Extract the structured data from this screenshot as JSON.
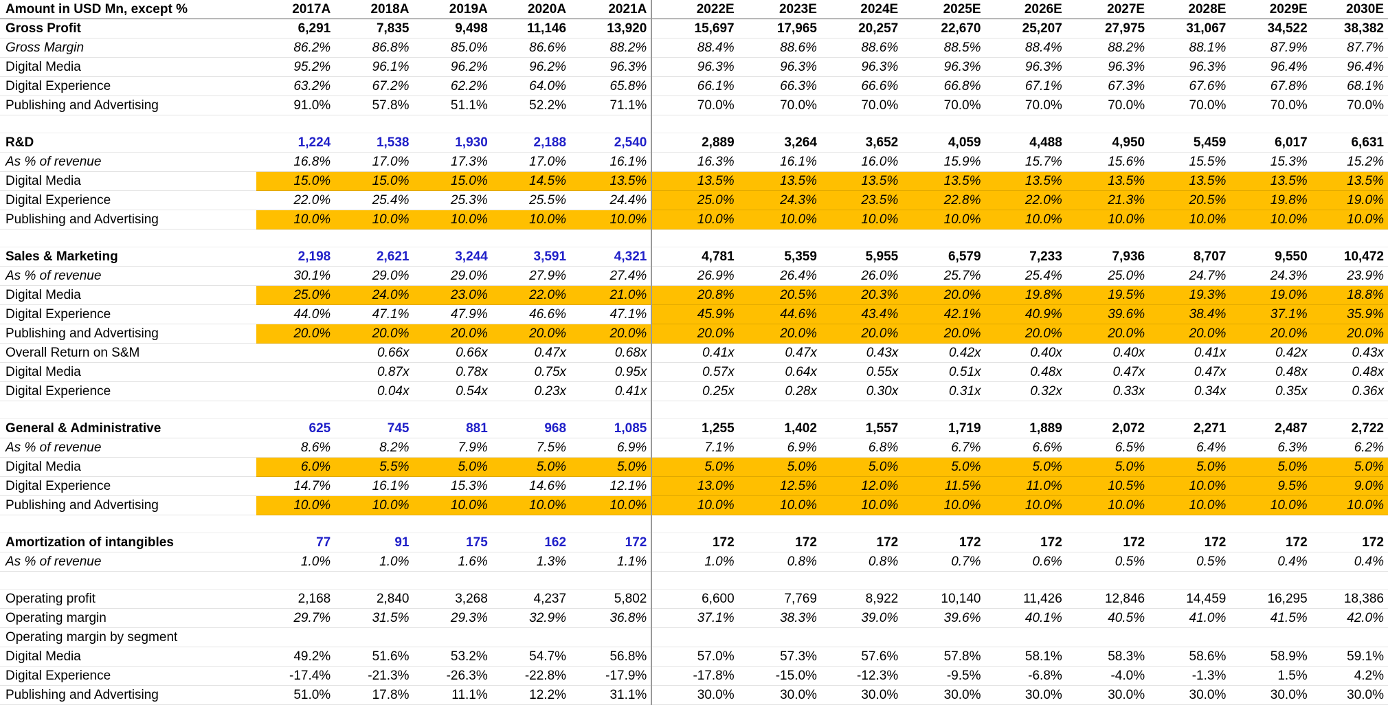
{
  "colors": {
    "highlight": "#ffbf00",
    "historical_bold_text": "#1f1fc8"
  },
  "header": {
    "title": "Amount in USD Mn, except %",
    "years": [
      "2017A",
      "2018A",
      "2019A",
      "2020A",
      "2021A",
      "2022E",
      "2023E",
      "2024E",
      "2025E",
      "2026E",
      "2027E",
      "2028E",
      "2029E",
      "2030E"
    ]
  },
  "rows": [
    {
      "label": "Gross Profit",
      "style": "bold-black",
      "values": [
        "6,291",
        "7,835",
        "9,498",
        "11,146",
        "13,920",
        "15,697",
        "17,965",
        "20,257",
        "22,670",
        "25,207",
        "27,975",
        "31,067",
        "34,522",
        "38,382"
      ]
    },
    {
      "label": "Gross Margin",
      "style": "italic",
      "values": [
        "86.2%",
        "86.8%",
        "85.0%",
        "86.6%",
        "88.2%",
        "88.4%",
        "88.6%",
        "88.6%",
        "88.5%",
        "88.4%",
        "88.2%",
        "88.1%",
        "87.9%",
        "87.7%"
      ]
    },
    {
      "label": "Digital Media",
      "style": "italic-values",
      "values": [
        "95.2%",
        "96.1%",
        "96.2%",
        "96.2%",
        "96.3%",
        "96.3%",
        "96.3%",
        "96.3%",
        "96.3%",
        "96.3%",
        "96.3%",
        "96.3%",
        "96.4%",
        "96.4%"
      ]
    },
    {
      "label": "Digital Experience",
      "style": "italic-values",
      "values": [
        "63.2%",
        "67.2%",
        "62.2%",
        "64.0%",
        "65.8%",
        "66.1%",
        "66.3%",
        "66.6%",
        "66.8%",
        "67.1%",
        "67.3%",
        "67.6%",
        "67.8%",
        "68.1%"
      ]
    },
    {
      "label": "Publishing and Advertising",
      "style": "plain",
      "values": [
        "91.0%",
        "57.8%",
        "51.1%",
        "52.2%",
        "71.1%",
        "70.0%",
        "70.0%",
        "70.0%",
        "70.0%",
        "70.0%",
        "70.0%",
        "70.0%",
        "70.0%",
        "70.0%"
      ]
    },
    {
      "label": "",
      "style": "spacer",
      "values": []
    },
    {
      "label": "R&D",
      "style": "bold",
      "values": [
        "1,224",
        "1,538",
        "1,930",
        "2,188",
        "2,540",
        "2,889",
        "3,264",
        "3,652",
        "4,059",
        "4,488",
        "4,950",
        "5,459",
        "6,017",
        "6,631"
      ]
    },
    {
      "label": "As % of revenue",
      "style": "italic",
      "values": [
        "16.8%",
        "17.0%",
        "17.3%",
        "17.0%",
        "16.1%",
        "16.3%",
        "16.1%",
        "16.0%",
        "15.9%",
        "15.7%",
        "15.6%",
        "15.5%",
        "15.3%",
        "15.2%"
      ]
    },
    {
      "label": "Digital Media",
      "style": "italic-values",
      "hl": "all",
      "values": [
        "15.0%",
        "15.0%",
        "15.0%",
        "14.5%",
        "13.5%",
        "13.5%",
        "13.5%",
        "13.5%",
        "13.5%",
        "13.5%",
        "13.5%",
        "13.5%",
        "13.5%",
        "13.5%"
      ]
    },
    {
      "label": "Digital Experience",
      "style": "italic-values",
      "hl": "forecast",
      "values": [
        "22.0%",
        "25.4%",
        "25.3%",
        "25.5%",
        "24.4%",
        "25.0%",
        "24.3%",
        "23.5%",
        "22.8%",
        "22.0%",
        "21.3%",
        "20.5%",
        "19.8%",
        "19.0%"
      ]
    },
    {
      "label": "Publishing and Advertising",
      "style": "italic-values",
      "hl": "all",
      "values": [
        "10.0%",
        "10.0%",
        "10.0%",
        "10.0%",
        "10.0%",
        "10.0%",
        "10.0%",
        "10.0%",
        "10.0%",
        "10.0%",
        "10.0%",
        "10.0%",
        "10.0%",
        "10.0%"
      ]
    },
    {
      "label": "",
      "style": "spacer",
      "values": []
    },
    {
      "label": "Sales & Marketing",
      "style": "bold",
      "values": [
        "2,198",
        "2,621",
        "3,244",
        "3,591",
        "4,321",
        "4,781",
        "5,359",
        "5,955",
        "6,579",
        "7,233",
        "7,936",
        "8,707",
        "9,550",
        "10,472"
      ]
    },
    {
      "label": "As % of revenue",
      "style": "italic",
      "values": [
        "30.1%",
        "29.0%",
        "29.0%",
        "27.9%",
        "27.4%",
        "26.9%",
        "26.4%",
        "26.0%",
        "25.7%",
        "25.4%",
        "25.0%",
        "24.7%",
        "24.3%",
        "23.9%"
      ]
    },
    {
      "label": "Digital Media",
      "style": "italic-values",
      "hl": "all",
      "values": [
        "25.0%",
        "24.0%",
        "23.0%",
        "22.0%",
        "21.0%",
        "20.8%",
        "20.5%",
        "20.3%",
        "20.0%",
        "19.8%",
        "19.5%",
        "19.3%",
        "19.0%",
        "18.8%"
      ]
    },
    {
      "label": "Digital Experience",
      "style": "italic-values",
      "hl": "forecast",
      "values": [
        "44.0%",
        "47.1%",
        "47.9%",
        "46.6%",
        "47.1%",
        "45.9%",
        "44.6%",
        "43.4%",
        "42.1%",
        "40.9%",
        "39.6%",
        "38.4%",
        "37.1%",
        "35.9%"
      ]
    },
    {
      "label": "Publishing and Advertising",
      "style": "italic-values",
      "hl": "all",
      "values": [
        "20.0%",
        "20.0%",
        "20.0%",
        "20.0%",
        "20.0%",
        "20.0%",
        "20.0%",
        "20.0%",
        "20.0%",
        "20.0%",
        "20.0%",
        "20.0%",
        "20.0%",
        "20.0%"
      ]
    },
    {
      "label": "Overall Return on S&M",
      "style": "italic-values",
      "values": [
        "",
        "0.66x",
        "0.66x",
        "0.47x",
        "0.68x",
        "0.41x",
        "0.47x",
        "0.43x",
        "0.42x",
        "0.40x",
        "0.40x",
        "0.41x",
        "0.42x",
        "0.43x"
      ]
    },
    {
      "label": "Digital Media",
      "style": "italic-values",
      "values": [
        "",
        "0.87x",
        "0.78x",
        "0.75x",
        "0.95x",
        "0.57x",
        "0.64x",
        "0.55x",
        "0.51x",
        "0.48x",
        "0.47x",
        "0.47x",
        "0.48x",
        "0.48x"
      ]
    },
    {
      "label": "Digital Experience",
      "style": "italic-values",
      "values": [
        "",
        "0.04x",
        "0.54x",
        "0.23x",
        "0.41x",
        "0.25x",
        "0.28x",
        "0.30x",
        "0.31x",
        "0.32x",
        "0.33x",
        "0.34x",
        "0.35x",
        "0.36x"
      ]
    },
    {
      "label": "",
      "style": "spacer",
      "values": []
    },
    {
      "label": "General & Administrative",
      "style": "bold",
      "values": [
        "625",
        "745",
        "881",
        "968",
        "1,085",
        "1,255",
        "1,402",
        "1,557",
        "1,719",
        "1,889",
        "2,072",
        "2,271",
        "2,487",
        "2,722"
      ]
    },
    {
      "label": "As % of revenue",
      "style": "italic",
      "values": [
        "8.6%",
        "8.2%",
        "7.9%",
        "7.5%",
        "6.9%",
        "7.1%",
        "6.9%",
        "6.8%",
        "6.7%",
        "6.6%",
        "6.5%",
        "6.4%",
        "6.3%",
        "6.2%"
      ]
    },
    {
      "label": "Digital Media",
      "style": "italic-values",
      "hl": "all",
      "values": [
        "6.0%",
        "5.5%",
        "5.0%",
        "5.0%",
        "5.0%",
        "5.0%",
        "5.0%",
        "5.0%",
        "5.0%",
        "5.0%",
        "5.0%",
        "5.0%",
        "5.0%",
        "5.0%"
      ]
    },
    {
      "label": "Digital Experience",
      "style": "italic-values",
      "hl": "forecast",
      "values": [
        "14.7%",
        "16.1%",
        "15.3%",
        "14.6%",
        "12.1%",
        "13.0%",
        "12.5%",
        "12.0%",
        "11.5%",
        "11.0%",
        "10.5%",
        "10.0%",
        "9.5%",
        "9.0%"
      ]
    },
    {
      "label": "Publishing and Advertising",
      "style": "italic-values",
      "hl": "all",
      "values": [
        "10.0%",
        "10.0%",
        "10.0%",
        "10.0%",
        "10.0%",
        "10.0%",
        "10.0%",
        "10.0%",
        "10.0%",
        "10.0%",
        "10.0%",
        "10.0%",
        "10.0%",
        "10.0%"
      ]
    },
    {
      "label": "",
      "style": "spacer",
      "values": []
    },
    {
      "label": "Amortization of intangibles",
      "style": "bold",
      "values": [
        "77",
        "91",
        "175",
        "162",
        "172",
        "172",
        "172",
        "172",
        "172",
        "172",
        "172",
        "172",
        "172",
        "172"
      ]
    },
    {
      "label": "As % of revenue",
      "style": "italic",
      "values": [
        "1.0%",
        "1.0%",
        "1.6%",
        "1.3%",
        "1.1%",
        "1.0%",
        "0.8%",
        "0.8%",
        "0.7%",
        "0.6%",
        "0.5%",
        "0.5%",
        "0.4%",
        "0.4%"
      ]
    },
    {
      "label": "",
      "style": "spacer",
      "values": []
    },
    {
      "label": "Operating profit",
      "style": "plain",
      "values": [
        "2,168",
        "2,840",
        "3,268",
        "4,237",
        "5,802",
        "6,600",
        "7,769",
        "8,922",
        "10,140",
        "11,426",
        "12,846",
        "14,459",
        "16,295",
        "18,386"
      ]
    },
    {
      "label": "Operating margin",
      "style": "italic-values",
      "values": [
        "29.7%",
        "31.5%",
        "29.3%",
        "32.9%",
        "36.8%",
        "37.1%",
        "38.3%",
        "39.0%",
        "39.6%",
        "40.1%",
        "40.5%",
        "41.0%",
        "41.5%",
        "42.0%"
      ]
    },
    {
      "label": "Operating margin by segment",
      "style": "plain",
      "values": []
    },
    {
      "label": "Digital Media",
      "style": "plain",
      "values": [
        "49.2%",
        "51.6%",
        "53.2%",
        "54.7%",
        "56.8%",
        "57.0%",
        "57.3%",
        "57.6%",
        "57.8%",
        "58.1%",
        "58.3%",
        "58.6%",
        "58.9%",
        "59.1%"
      ]
    },
    {
      "label": "Digital Experience",
      "style": "plain",
      "values": [
        "-17.4%",
        "-21.3%",
        "-26.3%",
        "-22.8%",
        "-17.9%",
        "-17.8%",
        "-15.0%",
        "-12.3%",
        "-9.5%",
        "-6.8%",
        "-4.0%",
        "-1.3%",
        "1.5%",
        "4.2%"
      ]
    },
    {
      "label": "Publishing and Advertising",
      "style": "plain",
      "values": [
        "51.0%",
        "17.8%",
        "11.1%",
        "12.2%",
        "31.1%",
        "30.0%",
        "30.0%",
        "30.0%",
        "30.0%",
        "30.0%",
        "30.0%",
        "30.0%",
        "30.0%",
        "30.0%"
      ]
    }
  ]
}
